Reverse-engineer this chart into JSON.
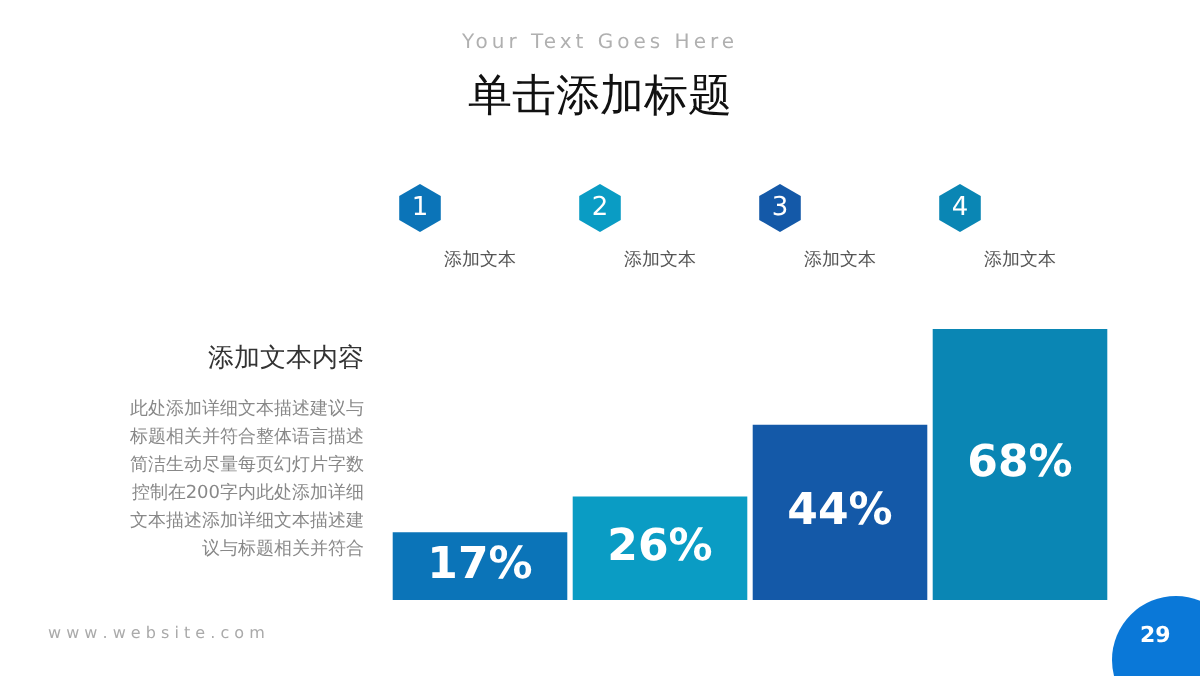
{
  "chart_data": {
    "type": "bar",
    "title": "单击添加标题",
    "subtitle": "Your Text Goes Here",
    "categories": [
      "1",
      "2",
      "3",
      "4"
    ],
    "values": [
      17,
      26,
      44,
      68
    ],
    "colors": [
      "#0b74b8",
      "#0a9cc4",
      "#1459a8",
      "#0a86b4"
    ],
    "value_labels": [
      "17%",
      "26%",
      "44%",
      "68%"
    ],
    "legend": false,
    "annotations": [
      "添加文本内容",
      "此处添加详细文本描述建议与标题相关并符合整体语言描述简洁生动尽量每页幻灯片字数控制在200字内此处添加详细文本描述添加详细文本描述建议与标题相关并符合",
      "w w w . w e b s i t e . c o m",
      "29",
      "添加文本",
      "添加文本",
      "添加文本",
      "添加文本"
    ]
  }
}
